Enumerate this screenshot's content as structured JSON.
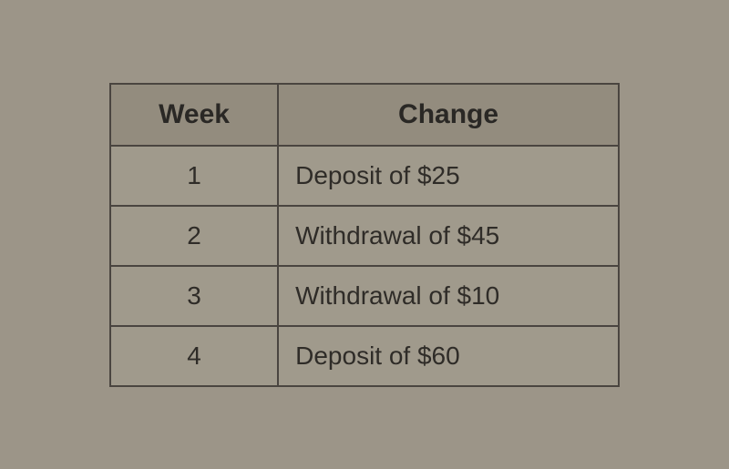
{
  "table": {
    "columns": [
      "Week",
      "Change"
    ],
    "rows": [
      [
        "1",
        "Deposit of $25"
      ],
      [
        "2",
        "Withdrawal of $45"
      ],
      [
        "3",
        "Withdrawal of $10"
      ],
      [
        "4",
        "Deposit of $60"
      ]
    ],
    "header_bg": "#938c7e",
    "cell_bg": "#a09a8c",
    "border_color": "#4a4540",
    "text_color": "#2a2825",
    "header_fontsize": 30,
    "cell_fontsize": 28,
    "col_widths": [
      "33%",
      "67%"
    ],
    "col_align": [
      "center",
      "left"
    ]
  },
  "page_bg": "#9c9588"
}
